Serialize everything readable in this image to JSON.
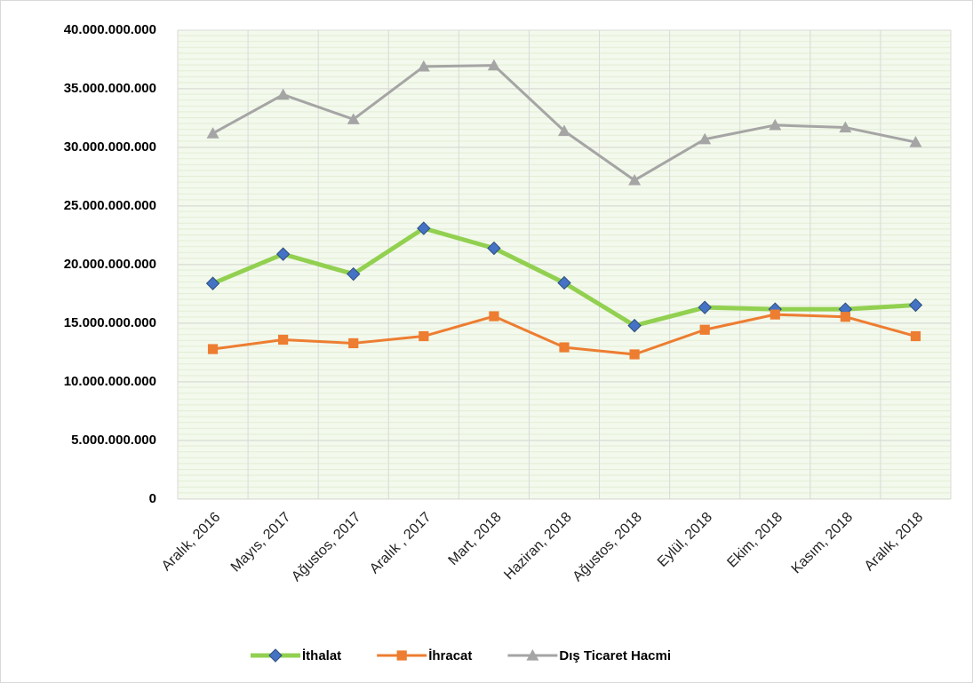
{
  "chart_data": {
    "type": "line",
    "categories": [
      "Aralık, 2016",
      "Mayıs, 2017",
      "Ağustos, 2017",
      "Aralık , 2017",
      "Mart, 2018",
      "Haziran, 2018",
      "Ağustos, 2018",
      "Eylül, 2018",
      "Ekim, 2018",
      "Kasım, 2018",
      "Aralık, 2018"
    ],
    "series": [
      {
        "name": "İthalat",
        "color": "#92d050",
        "marker_color": "#4472c4",
        "marker": "diamond",
        "values": [
          18400000000,
          20900000000,
          19200000000,
          23100000000,
          21400000000,
          18450000000,
          14800000000,
          16350000000,
          16200000000,
          16200000000,
          16550000000
        ]
      },
      {
        "name": "İhracat",
        "color": "#ed7d31",
        "marker_color": "#ed7d31",
        "marker": "square",
        "values": [
          12800000000,
          13600000000,
          13300000000,
          13900000000,
          15600000000,
          12950000000,
          12350000000,
          14450000000,
          15750000000,
          15550000000,
          13900000000
        ]
      },
      {
        "name": "Dış Ticaret Hacmi",
        "color": "#a5a5a5",
        "marker_color": "#a5a5a5",
        "marker": "triangle",
        "values": [
          31200000000,
          34500000000,
          32400000000,
          36900000000,
          37000000000,
          31400000000,
          27200000000,
          30700000000,
          31900000000,
          31700000000,
          30450000000
        ]
      }
    ],
    "ylim": [
      0,
      40000000000
    ],
    "yticks": [
      0,
      {
        "value": 5000000000,
        "label": "5.000.000.000"
      },
      {
        "value": 10000000000,
        "label": "10.000.000.000"
      },
      {
        "value": 15000000000,
        "label": "15.000.000.000"
      },
      {
        "value": 20000000000,
        "label": "20.000.000.000"
      },
      {
        "value": 25000000000,
        "label": "25.000.000.000"
      },
      {
        "value": 30000000000,
        "label": "30.000.000.000"
      },
      {
        "value": 35000000000,
        "label": "35.000.000.000"
      },
      {
        "value": 40000000000,
        "label": "40.000.000.000"
      }
    ],
    "grid": true,
    "legend": "bottom"
  }
}
